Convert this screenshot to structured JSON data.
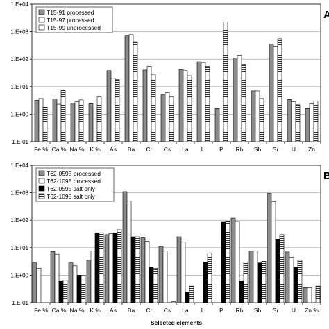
{
  "chart_data": [
    {
      "type": "bar",
      "panel_label": "A",
      "yscale": "log",
      "ylim": [
        0.1,
        10000
      ],
      "yticks": [
        "1.E-01",
        "1.E+00",
        "1.E+01",
        "1.E+02",
        "1.E+03",
        "1.E+04"
      ],
      "grid": true,
      "legend_position": "top-left",
      "categories": [
        "Fe %",
        "Ca %",
        "Na %",
        "K %",
        "As",
        "Ba",
        "Cr",
        "Cs",
        "La",
        "Li",
        "P",
        "Rb",
        "Sb",
        "Sr",
        "U",
        "Zn"
      ],
      "xlabel": "",
      "series": [
        {
          "name": "T15-91 processed",
          "pattern": "gray",
          "values": [
            3.2,
            3.6,
            2.5,
            2.4,
            38,
            700,
            40,
            5,
            42,
            80,
            1.6,
            110,
            7,
            350,
            3.4,
            1.6
          ]
        },
        {
          "name": "T15-97 processed",
          "pattern": "white",
          "values": [
            3.7,
            2.3,
            2.8,
            1.7,
            20,
            780,
            55,
            6,
            38,
            75,
            0.0,
            140,
            7,
            300,
            2.8,
            2.4
          ]
        },
        {
          "name": "T15-99 unprocessed",
          "pattern": "hatched",
          "values": [
            1.8,
            7.5,
            3.3,
            4.2,
            18,
            430,
            28,
            4.2,
            25,
            55,
            2300,
            65,
            3.7,
            550,
            2.2,
            3.0
          ]
        }
      ]
    },
    {
      "type": "bar",
      "panel_label": "B",
      "yscale": "log",
      "ylim": [
        0.1,
        10000
      ],
      "yticks": [
        "1.E-01",
        "1.E+00",
        "1.E+01",
        "1.E+02",
        "1.E+03",
        "1.E+04"
      ],
      "grid": true,
      "legend_position": "top-left",
      "categories": [
        "Fe %",
        "Ca %",
        "Na %",
        "K %",
        "As",
        "Ba",
        "Cr",
        "Cs",
        "La",
        "Li",
        "P",
        "Rb",
        "Sb",
        "Sr",
        "U",
        "Zn %"
      ],
      "xlabel": "Selected elements",
      "series": [
        {
          "name": "T62-0595 processed",
          "pattern": "gray",
          "values": [
            2.8,
            7.2,
            2.8,
            3.5,
            30,
            1100,
            23,
            11,
            25,
            0.0,
            0.0,
            120,
            7.5,
            950,
            7,
            0.35
          ]
        },
        {
          "name": "T62-1095 processed",
          "pattern": "white",
          "values": [
            1.8,
            5.8,
            2.2,
            7.5,
            33,
            500,
            17,
            7.5,
            16,
            0.0,
            0.0,
            90,
            7.5,
            480,
            4.5,
            0.35
          ]
        },
        {
          "name": "T62-0595 salt only",
          "pattern": "black",
          "values": [
            0.0,
            0.6,
            1.0,
            35,
            35,
            25,
            2.0,
            0.0,
            0.25,
            3.0,
            85,
            0.6,
            2.8,
            20,
            2.0,
            0.0
          ]
        },
        {
          "name": "T62-1095 salt only",
          "pattern": "hatched",
          "values": [
            0.0,
            0.65,
            1.0,
            35,
            45,
            25,
            1.8,
            0.11,
            0.4,
            6.5,
            90,
            3.0,
            3.2,
            30,
            3.5,
            0.4
          ]
        }
      ]
    }
  ]
}
